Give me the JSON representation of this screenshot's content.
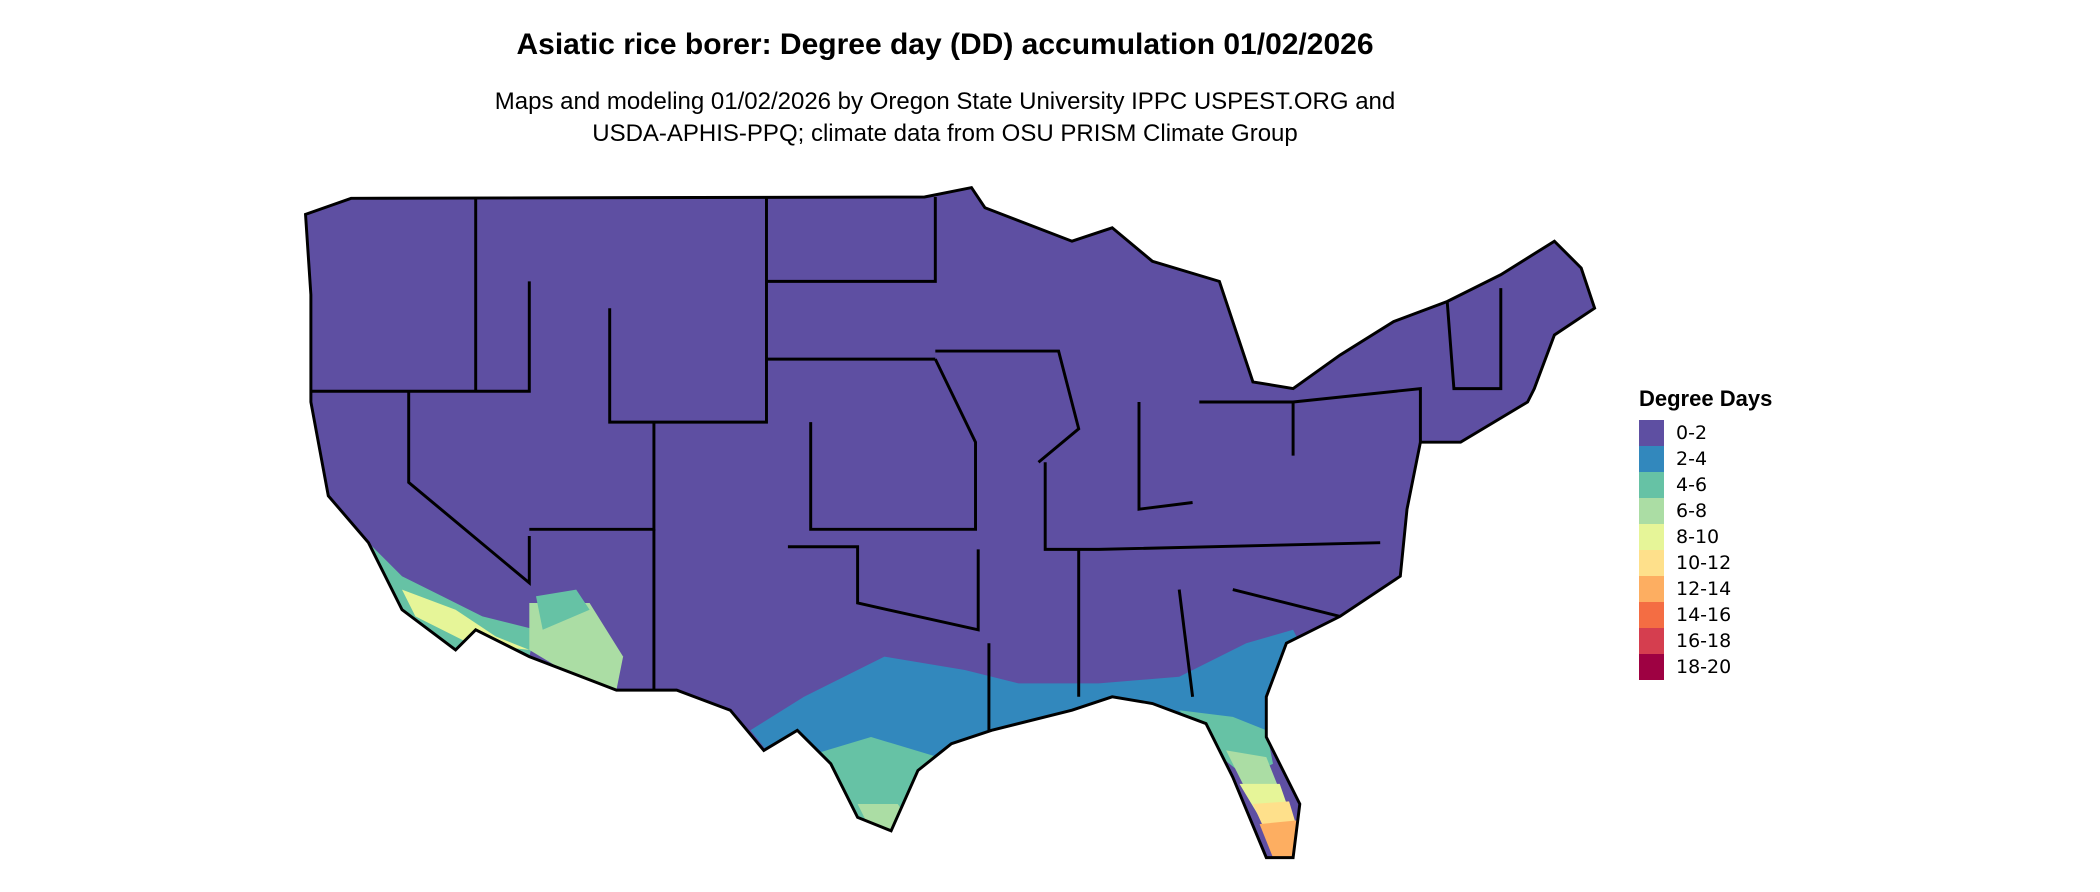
{
  "title": "Asiatic rice borer: Degree day (DD) accumulation 01/02/2026",
  "subtitle_line1": "Maps and modeling 01/02/2026 by Oregon State University IPPC USPEST.ORG and",
  "subtitle_line2": "USDA-APHIS-PPQ; climate data from OSU PRISM Climate Group",
  "legend": {
    "title": "Degree Days",
    "items": [
      {
        "label": "0-2",
        "color": "#5E4FA2"
      },
      {
        "label": "2-4",
        "color": "#3288BD"
      },
      {
        "label": "4-6",
        "color": "#66C2A5"
      },
      {
        "label": "6-8",
        "color": "#ABDDA4"
      },
      {
        "label": "8-10",
        "color": "#E6F598"
      },
      {
        "label": "10-12",
        "color": "#FEE08B"
      },
      {
        "label": "12-14",
        "color": "#FDAE61"
      },
      {
        "label": "14-16",
        "color": "#F46D43"
      },
      {
        "label": "16-18",
        "color": "#D53E4F"
      },
      {
        "label": "18-20",
        "color": "#9E0142"
      }
    ]
  },
  "map": {
    "region": "Contiguous United States",
    "borders": "state"
  }
}
